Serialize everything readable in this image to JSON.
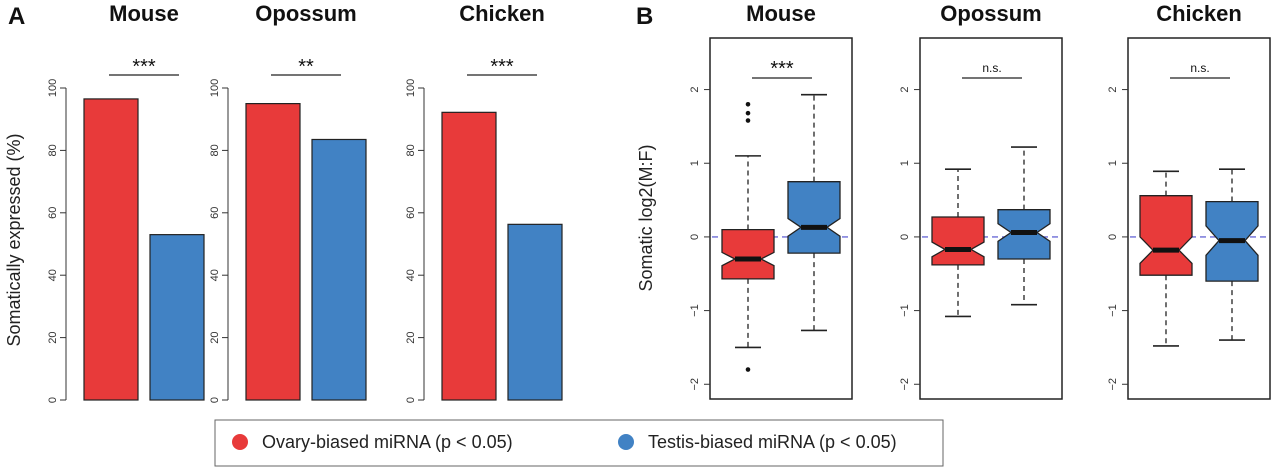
{
  "colors": {
    "ovary": "#E83A3A",
    "testis": "#4182C4",
    "median_line": "#6B6BD6"
  },
  "panel_labels": {
    "a": "A",
    "b": "B"
  },
  "legend": {
    "ovary": "Ovary-biased miRNA (p < 0.05)",
    "testis": "Testis-biased miRNA (p < 0.05)"
  },
  "chart_data": [
    {
      "type": "bar",
      "panel": "A",
      "ylabel": "Somatically expressed (%)",
      "ylim": [
        0,
        100
      ],
      "yticks": [
        "0",
        "20",
        "40",
        "60",
        "80",
        "100"
      ],
      "grid": false,
      "categories": [
        "Ovary-biased miRNA (p < 0.05)",
        "Testis-biased miRNA (p < 0.05)"
      ],
      "subplots": [
        {
          "title": "Mouse",
          "values": [
            96.5,
            53
          ],
          "significance": "***"
        },
        {
          "title": "Opossum",
          "values": [
            95,
            83.5
          ],
          "significance": "**"
        },
        {
          "title": "Chicken",
          "values": [
            92.2,
            56.3
          ],
          "significance": "***"
        }
      ]
    },
    {
      "type": "box",
      "panel": "B",
      "ylabel": "Somatic log2(M:F)",
      "ylim": [
        -2.2,
        2.7
      ],
      "yticks": [
        "−2",
        "−1",
        "0",
        "1",
        "2"
      ],
      "reference_line": 0,
      "grid": false,
      "subplots": [
        {
          "title": "Mouse",
          "significance": "***",
          "boxes": [
            {
              "whisker_low": -1.5,
              "q1": -0.57,
              "median": -0.3,
              "q3": 0.1,
              "whisker_high": 1.1,
              "notch": 0.09,
              "outliers": [
                1.58,
                1.68,
                1.8,
                -1.8
              ]
            },
            {
              "whisker_low": -1.27,
              "q1": -0.22,
              "median": 0.13,
              "q3": 0.75,
              "whisker_high": 1.93,
              "notch": 0.12,
              "outliers": []
            }
          ]
        },
        {
          "title": "Opossum",
          "significance": "n.s.",
          "boxes": [
            {
              "whisker_low": -1.08,
              "q1": -0.38,
              "median": -0.17,
              "q3": 0.27,
              "whisker_high": 0.92,
              "notch": 0.1,
              "outliers": []
            },
            {
              "whisker_low": -0.92,
              "q1": -0.3,
              "median": 0.06,
              "q3": 0.37,
              "whisker_high": 1.22,
              "notch": 0.12,
              "outliers": []
            }
          ]
        },
        {
          "title": "Chicken",
          "significance": "n.s.",
          "boxes": [
            {
              "whisker_low": -1.48,
              "q1": -0.52,
              "median": -0.18,
              "q3": 0.56,
              "whisker_high": 0.89,
              "notch": 0.18,
              "outliers": []
            },
            {
              "whisker_low": -1.4,
              "q1": -0.6,
              "median": -0.05,
              "q3": 0.48,
              "whisker_high": 0.92,
              "notch": 0.2,
              "outliers": []
            }
          ]
        }
      ]
    }
  ]
}
